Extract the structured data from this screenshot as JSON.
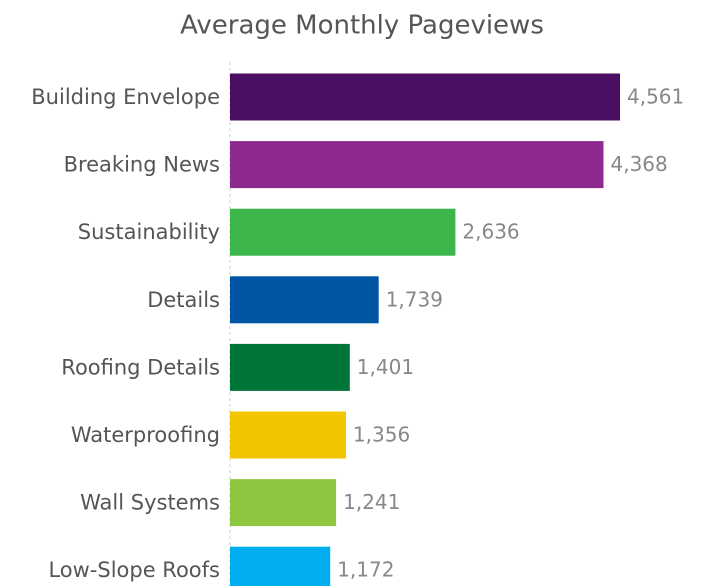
{
  "chart_data": {
    "type": "bar",
    "orientation": "horizontal",
    "title": "Average Monthly Pageviews",
    "categories": [
      "Building Envelope",
      "Breaking News",
      "Sustainability",
      "Details",
      "Roofing Details",
      "Waterproofing",
      "Wall Systems",
      "Low-Slope Roofs"
    ],
    "values": [
      4561,
      4368,
      2636,
      1739,
      1401,
      1356,
      1241,
      1172
    ],
    "value_labels": [
      "4,561",
      "4,368",
      "2,636",
      "1,739",
      "1,401",
      "1,356",
      "1,241",
      "1,172"
    ],
    "colors": [
      "#4a0e62",
      "#8e2a8f",
      "#3cb54a",
      "#0055a5",
      "#00753a",
      "#f2c500",
      "#8dc63f",
      "#00adee"
    ]
  }
}
